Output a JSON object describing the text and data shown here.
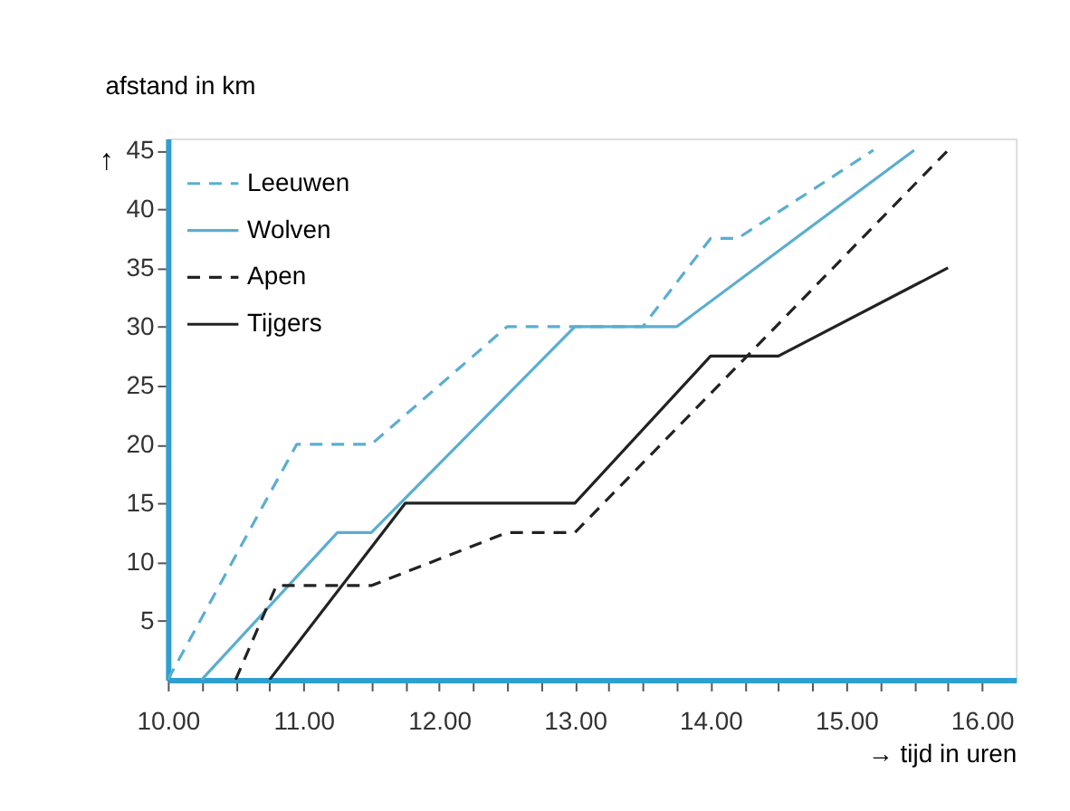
{
  "chart_data": {
    "type": "line",
    "xlabel": "→ tijd in uren",
    "ylabel": "afstand in km",
    "annotations": [
      "↑"
    ],
    "series": [
      {
        "name": "Leeuwen",
        "color": "#5aaed0",
        "line_style": "dashed",
        "x": [
          10,
          10.95,
          11.5,
          12.5,
          13.5,
          14.0,
          14.2,
          15.2
        ],
        "values": [
          0,
          20,
          20,
          30,
          30,
          37.5,
          37.5,
          45
        ]
      },
      {
        "name": "Wolven",
        "color": "#5aaed0",
        "line_style": "solid",
        "x": [
          10.25,
          11.25,
          11.5,
          13.0,
          13.75,
          15.5
        ],
        "values": [
          0,
          12.5,
          12.5,
          30,
          30,
          45
        ]
      },
      {
        "name": "Apen",
        "color": "#222222",
        "line_style": "dashed",
        "x": [
          10.5,
          10.8,
          11.5,
          12.5,
          13.0,
          15.75
        ],
        "values": [
          0,
          8,
          8,
          12.5,
          12.5,
          45
        ]
      },
      {
        "name": "Tijgers",
        "color": "#222222",
        "line_style": "solid",
        "x": [
          10.75,
          11.75,
          13.0,
          14.0,
          14.5,
          15.75
        ],
        "values": [
          0,
          15,
          15,
          27.5,
          27.5,
          35
        ]
      }
    ],
    "xlim": [
      10,
      16.25
    ],
    "ylim": [
      0,
      46
    ],
    "xticks": [
      {
        "value": 10,
        "label": "10.00"
      },
      {
        "value": 10.25,
        "label": null
      },
      {
        "value": 10.5,
        "label": null
      },
      {
        "value": 10.75,
        "label": null
      },
      {
        "value": 11,
        "label": "11.00"
      },
      {
        "value": 11.25,
        "label": null
      },
      {
        "value": 11.5,
        "label": null
      },
      {
        "value": 11.75,
        "label": null
      },
      {
        "value": 12,
        "label": "12.00"
      },
      {
        "value": 12.25,
        "label": null
      },
      {
        "value": 12.5,
        "label": null
      },
      {
        "value": 12.75,
        "label": null
      },
      {
        "value": 13,
        "label": "13.00"
      },
      {
        "value": 13.25,
        "label": null
      },
      {
        "value": 13.5,
        "label": null
      },
      {
        "value": 13.75,
        "label": null
      },
      {
        "value": 14,
        "label": "14.00"
      },
      {
        "value": 14.25,
        "label": null
      },
      {
        "value": 14.5,
        "label": null
      },
      {
        "value": 14.75,
        "label": null
      },
      {
        "value": 15,
        "label": "15.00"
      },
      {
        "value": 15.25,
        "label": null
      },
      {
        "value": 15.5,
        "label": null
      },
      {
        "value": 15.75,
        "label": null
      },
      {
        "value": 16,
        "label": "16.00"
      }
    ],
    "yticks": [
      5,
      10,
      15,
      20,
      25,
      30,
      35,
      40,
      45
    ],
    "legend": "top left",
    "grid": false
  }
}
